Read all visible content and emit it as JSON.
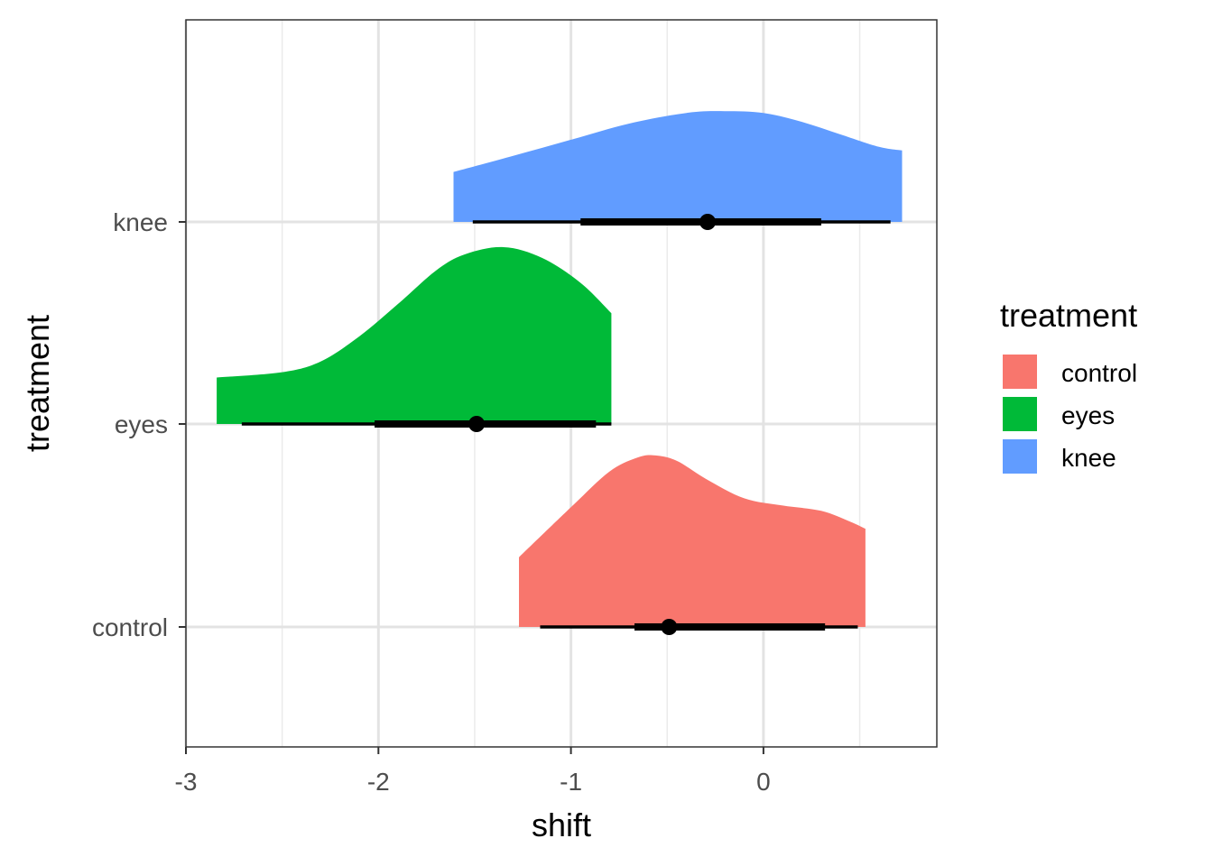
{
  "chart_data": {
    "type": "halfeye",
    "xlabel": "shift",
    "ylabel": "treatment",
    "xlim": [
      -3.0,
      0.9
    ],
    "x_ticks": [
      -3,
      -2,
      -1,
      0
    ],
    "x_tick_labels": [
      "-3",
      "-2",
      "-1",
      "0"
    ],
    "x_minor_ticks": [
      -2.5,
      -1.5,
      -0.5,
      0.5
    ],
    "categories": [
      "control",
      "eyes",
      "knee"
    ],
    "grid": true,
    "legend": {
      "title": "treatment",
      "position": "right",
      "entries": [
        "control",
        "eyes",
        "knee"
      ]
    },
    "series": [
      {
        "name": "control",
        "color": "#F8766D",
        "point": -0.49,
        "interval_inner": [
          -0.67,
          0.32
        ],
        "interval_outer": [
          -1.16,
          0.49
        ],
        "density_x": [
          -1.27,
          -1.0,
          -0.8,
          -0.65,
          -0.56,
          -0.45,
          -0.3,
          -0.1,
          0.1,
          0.3,
          0.45,
          0.53
        ],
        "density_y": [
          0.39,
          0.67,
          0.87,
          0.95,
          0.96,
          0.93,
          0.83,
          0.72,
          0.68,
          0.65,
          0.59,
          0.55
        ]
      },
      {
        "name": "eyes",
        "color": "#00BA38",
        "point": -1.49,
        "interval_inner": [
          -2.02,
          -0.87
        ],
        "interval_outer": [
          -2.71,
          -0.79
        ],
        "density_x": [
          -2.84,
          -2.5,
          -2.3,
          -2.1,
          -1.9,
          -1.7,
          -1.55,
          -1.35,
          -1.15,
          -0.95,
          -0.79
        ],
        "density_y": [
          0.26,
          0.29,
          0.35,
          0.49,
          0.67,
          0.86,
          0.95,
          0.99,
          0.93,
          0.79,
          0.62
        ]
      },
      {
        "name": "knee",
        "color": "#619CFF",
        "point": -0.29,
        "interval_inner": [
          -0.95,
          0.3
        ],
        "interval_outer": [
          -1.51,
          0.66
        ],
        "density_x": [
          -1.61,
          -1.3,
          -1.0,
          -0.7,
          -0.4,
          -0.2,
          0.0,
          0.2,
          0.4,
          0.6,
          0.72
        ],
        "density_y": [
          0.28,
          0.37,
          0.46,
          0.55,
          0.61,
          0.62,
          0.61,
          0.56,
          0.49,
          0.42,
          0.4
        ]
      }
    ]
  }
}
